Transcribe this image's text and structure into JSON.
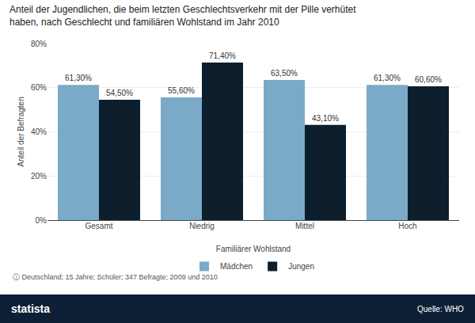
{
  "chart_data": {
    "type": "bar",
    "title": "Anteil der Jugendlichen, die beim letzten Geschlechtsverkehr mit der Pille verhütet\nhaben, nach Geschlecht und familiären Wohlstand im Jahr 2010",
    "xlabel": "Familiärer Wohlstand",
    "ylabel": "Anteil der Befragten",
    "categories": [
      "Gesamt",
      "Niedrig",
      "Mittel",
      "Hoch"
    ],
    "series": [
      {
        "name": "Mädchen",
        "color": "#7aaac8",
        "values": [
          61.3,
          55.6,
          63.5,
          61.3
        ],
        "value_labels": [
          "61,30%",
          "55,60%",
          "63,50%",
          "61,30%"
        ]
      },
      {
        "name": "Jungen",
        "color": "#0d1f2d",
        "values": [
          54.5,
          71.4,
          43.1,
          60.6
        ],
        "value_labels": [
          "54,50%",
          "71,40%",
          "43,10%",
          "60,60%"
        ]
      }
    ],
    "ylim": [
      0,
      80
    ],
    "yticks": [
      {
        "value": 0,
        "label": "0%"
      },
      {
        "value": 20,
        "label": "20%"
      },
      {
        "value": 40,
        "label": "40%"
      },
      {
        "value": 60,
        "label": "60%"
      },
      {
        "value": 80,
        "label": "80%"
      }
    ],
    "grid": true,
    "legend": "bottom",
    "data_labels": true,
    "annotations": [
      "ⓘ Deutschland; 15 Jahre; Schüler; 347 Befragte; 2009 und 2010",
      "statista",
      "Quelle: WHO"
    ]
  }
}
